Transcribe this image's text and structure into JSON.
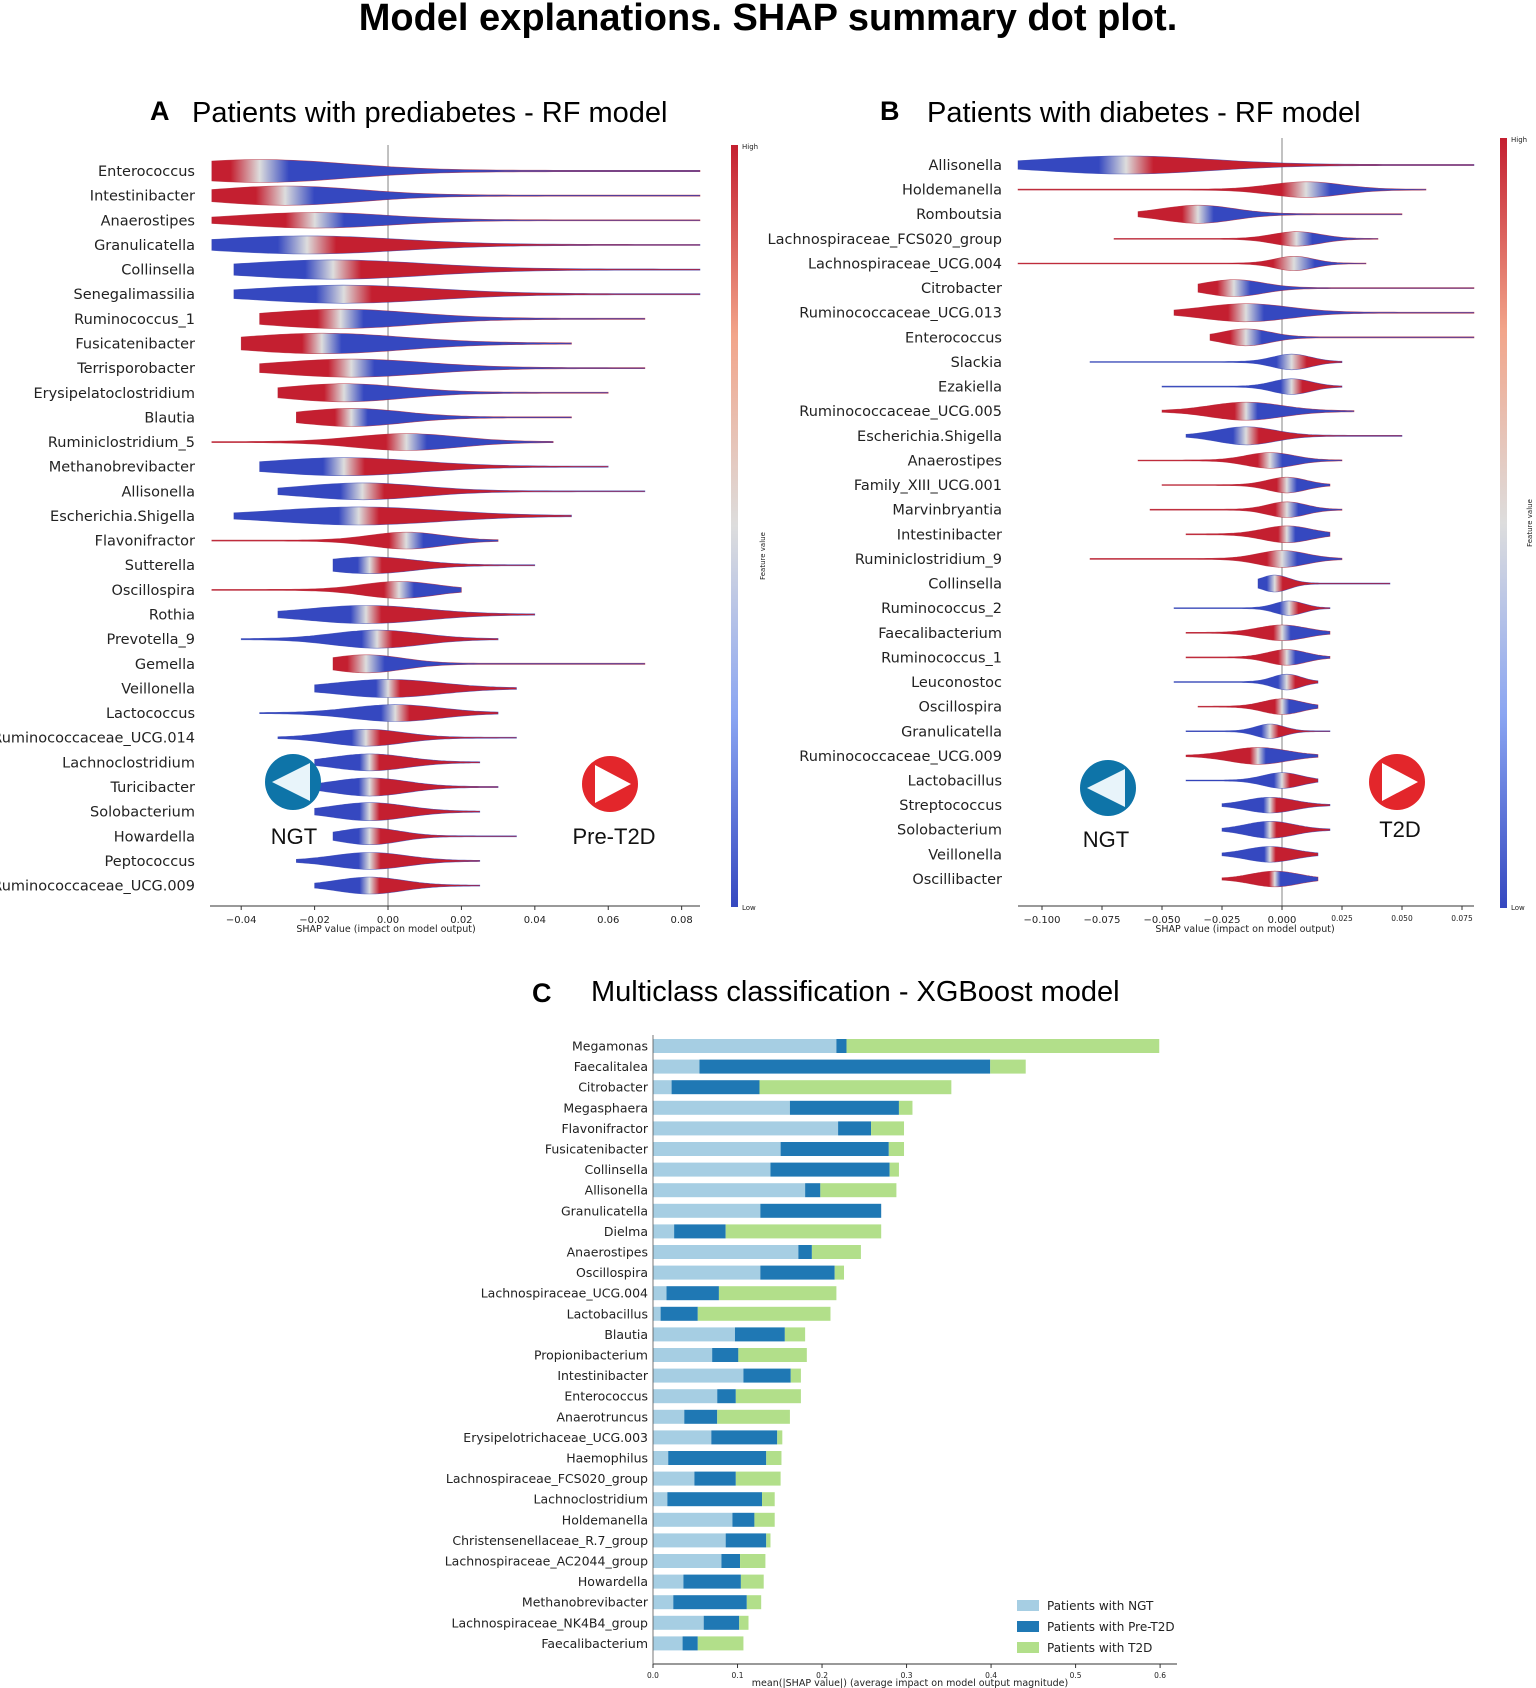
{
  "title": "Model explanations. SHAP summary dot plot.",
  "colors": {
    "high": "#c41f30",
    "low": "#3548c0",
    "mid": "#dddddd",
    "ngt": "#a6cee3",
    "pre_t2d": "#1f78b4",
    "t2d": "#b2df8a",
    "arrow_left": "#0e74a8",
    "arrow_right": "#e3262b"
  },
  "chart_data": [
    {
      "type": "violin",
      "panel": "A",
      "title": "Patients with prediabetes - RF model",
      "xlabel": "SHAP value (impact on model output)",
      "xlim": [
        -0.0485,
        0.085
      ],
      "xticks": [
        -0.04,
        -0.02,
        0.0,
        0.02,
        0.04,
        0.06,
        0.08
      ],
      "xtick_labels": [
        "−0.04",
        "−0.02",
        "0.00",
        "0.02",
        "0.04",
        "0.06",
        "0.08"
      ],
      "colorbar": {
        "label": "Feature value",
        "high": "High",
        "low": "Low"
      },
      "left_class": "NGT",
      "right_class": "Pre-T2D",
      "left_icon": "arrow-left-icon",
      "right_icon": "arrow-right-icon",
      "features": [
        "Enterococcus",
        "Intestinibacter",
        "Anaerostipes",
        "Granulicatella",
        "Collinsella",
        "Senegalimassilia",
        "Ruminococcus_1",
        "Fusicatenibacter",
        "Terrisporobacter",
        "Erysipelatoclostridium",
        "Blautia",
        "Ruminiclostridium_5",
        "Methanobrevibacter",
        "Allisonella",
        "Escherichia.Shigella",
        "Flavonifractor",
        "Sutterella",
        "Oscillospira",
        "Rothia",
        "Prevotella_9",
        "Gemella",
        "Veillonella",
        "Lactococcus",
        "Ruminococcaceae_UCG.014",
        "Lachnoclostridium",
        "Turicibacter",
        "Solobacterium",
        "Howardella",
        "Peptococcus",
        "Ruminococcaceae_UCG.009"
      ],
      "violins": [
        {
          "min": -0.048,
          "max": 0.085,
          "center": -0.035,
          "width": 0.024,
          "height": 0.95,
          "highside": -1
        },
        {
          "min": -0.048,
          "max": 0.085,
          "center": -0.028,
          "width": 0.02,
          "height": 0.8,
          "highside": -1
        },
        {
          "min": -0.048,
          "max": 0.085,
          "center": -0.02,
          "width": 0.02,
          "height": 0.65,
          "highside": -1
        },
        {
          "min": -0.048,
          "max": 0.085,
          "center": -0.022,
          "width": 0.025,
          "height": 0.75,
          "highside": 1
        },
        {
          "min": -0.042,
          "max": 0.085,
          "center": -0.015,
          "width": 0.025,
          "height": 0.8,
          "highside": 1
        },
        {
          "min": -0.042,
          "max": 0.085,
          "center": -0.012,
          "width": 0.024,
          "height": 0.75,
          "highside": 1
        },
        {
          "min": -0.035,
          "max": 0.07,
          "center": -0.013,
          "width": 0.02,
          "height": 0.8,
          "highside": -1
        },
        {
          "min": -0.04,
          "max": 0.05,
          "center": -0.018,
          "width": 0.022,
          "height": 0.85,
          "highside": -1
        },
        {
          "min": -0.035,
          "max": 0.07,
          "center": -0.01,
          "width": 0.02,
          "height": 0.75,
          "highside": -1
        },
        {
          "min": -0.03,
          "max": 0.06,
          "center": -0.012,
          "width": 0.016,
          "height": 0.75,
          "highside": -1
        },
        {
          "min": -0.025,
          "max": 0.05,
          "center": -0.01,
          "width": 0.014,
          "height": 0.75,
          "highside": -1
        },
        {
          "min": -0.048,
          "max": 0.045,
          "center": 0.005,
          "width": 0.014,
          "height": 0.7,
          "highside": -1
        },
        {
          "min": -0.035,
          "max": 0.06,
          "center": -0.012,
          "width": 0.02,
          "height": 0.75,
          "highside": 1
        },
        {
          "min": -0.03,
          "max": 0.07,
          "center": -0.007,
          "width": 0.016,
          "height": 0.7,
          "highside": 1
        },
        {
          "min": -0.042,
          "max": 0.05,
          "center": -0.008,
          "width": 0.022,
          "height": 0.75,
          "highside": 1
        },
        {
          "min": -0.048,
          "max": 0.03,
          "center": 0.005,
          "width": 0.01,
          "height": 0.7,
          "highside": -1
        },
        {
          "min": -0.015,
          "max": 0.04,
          "center": -0.005,
          "width": 0.012,
          "height": 0.7,
          "highside": 1
        },
        {
          "min": -0.048,
          "max": 0.02,
          "center": 0.003,
          "width": 0.01,
          "height": 0.7,
          "highside": -1
        },
        {
          "min": -0.03,
          "max": 0.04,
          "center": -0.006,
          "width": 0.016,
          "height": 0.75,
          "highside": 1
        },
        {
          "min": -0.04,
          "max": 0.03,
          "center": -0.003,
          "width": 0.012,
          "height": 0.75,
          "highside": 1
        },
        {
          "min": -0.015,
          "max": 0.07,
          "center": -0.006,
          "width": 0.01,
          "height": 0.75,
          "highside": -1
        },
        {
          "min": -0.02,
          "max": 0.035,
          "center": 0.0,
          "width": 0.014,
          "height": 0.75,
          "highside": 1
        },
        {
          "min": -0.035,
          "max": 0.03,
          "center": 0.002,
          "width": 0.012,
          "height": 0.7,
          "highside": 1
        },
        {
          "min": -0.03,
          "max": 0.035,
          "center": -0.006,
          "width": 0.01,
          "height": 0.7,
          "highside": 1
        },
        {
          "min": -0.02,
          "max": 0.025,
          "center": -0.005,
          "width": 0.01,
          "height": 0.7,
          "highside": 1
        },
        {
          "min": -0.02,
          "max": 0.03,
          "center": -0.005,
          "width": 0.01,
          "height": 0.75,
          "highside": 1
        },
        {
          "min": -0.02,
          "max": 0.025,
          "center": -0.005,
          "width": 0.01,
          "height": 0.75,
          "highside": 1
        },
        {
          "min": -0.015,
          "max": 0.035,
          "center": -0.005,
          "width": 0.008,
          "height": 0.7,
          "highside": 1
        },
        {
          "min": -0.025,
          "max": 0.025,
          "center": -0.005,
          "width": 0.01,
          "height": 0.7,
          "highside": 1
        },
        {
          "min": -0.02,
          "max": 0.025,
          "center": -0.005,
          "width": 0.009,
          "height": 0.7,
          "highside": 1
        }
      ]
    },
    {
      "type": "violin",
      "panel": "B",
      "title": "Patients with diabetes - RF model",
      "xlabel": "SHAP value (impact on model output)",
      "xlim": [
        -0.11,
        0.08
      ],
      "xticks": [
        -0.1,
        -0.075,
        -0.05,
        -0.025,
        0.0,
        0.025,
        0.05,
        0.075
      ],
      "xtick_labels": [
        "−0.100",
        "−0.075",
        "−0.050",
        "−0.025",
        "0.000",
        "0.025",
        "0.050",
        "0.075"
      ],
      "colorbar": {
        "label": "Feature value",
        "high": "High",
        "low": "Low"
      },
      "left_class": "NGT",
      "right_class": "T2D",
      "left_icon": "arrow-left-icon",
      "right_icon": "arrow-right-icon",
      "features": [
        "Allisonella",
        "Holdemanella",
        "Romboutsia",
        "Lachnospiraceae_FCS020_group",
        "Lachnospiraceae_UCG.004",
        "Citrobacter",
        "Ruminococcaceae_UCG.013",
        "Enterococcus",
        "Slackia",
        "Ezakiella",
        "Ruminococcaceae_UCG.005",
        "Escherichia.Shigella",
        "Anaerostipes",
        "Family_XIII_UCG.001",
        "Marvinbryantia",
        "Intestinibacter",
        "Ruminiclostridium_9",
        "Collinsella",
        "Ruminococcus_2",
        "Faecalibacterium",
        "Ruminococcus_1",
        "Leuconostoc",
        "Oscillospira",
        "Granulicatella",
        "Ruminococcaceae_UCG.009",
        "Lactobacillus",
        "Streptococcus",
        "Solobacterium",
        "Veillonella",
        "Oscillibacter"
      ],
      "violins": [
        {
          "min": -0.11,
          "max": 0.08,
          "center": -0.065,
          "width": 0.035,
          "height": 0.75,
          "highside": 1
        },
        {
          "min": -0.11,
          "max": 0.06,
          "center": 0.01,
          "width": 0.015,
          "height": 0.65,
          "highside": -1
        },
        {
          "min": -0.06,
          "max": 0.05,
          "center": -0.035,
          "width": 0.015,
          "height": 0.75,
          "highside": -1
        },
        {
          "min": -0.07,
          "max": 0.04,
          "center": 0.006,
          "width": 0.01,
          "height": 0.6,
          "highside": -1
        },
        {
          "min": -0.11,
          "max": 0.035,
          "center": 0.005,
          "width": 0.008,
          "height": 0.6,
          "highside": -1
        },
        {
          "min": -0.035,
          "max": 0.08,
          "center": -0.02,
          "width": 0.012,
          "height": 0.7,
          "highside": -1
        },
        {
          "min": -0.045,
          "max": 0.08,
          "center": -0.015,
          "width": 0.018,
          "height": 0.75,
          "highside": -1
        },
        {
          "min": -0.03,
          "max": 0.08,
          "center": -0.015,
          "width": 0.01,
          "height": 0.7,
          "highside": -1
        },
        {
          "min": -0.08,
          "max": 0.025,
          "center": 0.004,
          "width": 0.008,
          "height": 0.65,
          "highside": 1
        },
        {
          "min": -0.05,
          "max": 0.025,
          "center": 0.004,
          "width": 0.008,
          "height": 0.65,
          "highside": 1
        },
        {
          "min": -0.05,
          "max": 0.03,
          "center": -0.015,
          "width": 0.015,
          "height": 0.75,
          "highside": -1
        },
        {
          "min": -0.04,
          "max": 0.05,
          "center": -0.015,
          "width": 0.012,
          "height": 0.75,
          "highside": 1
        },
        {
          "min": -0.06,
          "max": 0.025,
          "center": -0.005,
          "width": 0.01,
          "height": 0.65,
          "highside": -1
        },
        {
          "min": -0.05,
          "max": 0.02,
          "center": 0.002,
          "width": 0.008,
          "height": 0.65,
          "highside": -1
        },
        {
          "min": -0.055,
          "max": 0.025,
          "center": 0.002,
          "width": 0.008,
          "height": 0.65,
          "highside": -1
        },
        {
          "min": -0.04,
          "max": 0.02,
          "center": 0.002,
          "width": 0.01,
          "height": 0.7,
          "highside": -1
        },
        {
          "min": -0.08,
          "max": 0.025,
          "center": 0.0,
          "width": 0.01,
          "height": 0.7,
          "highside": -1
        },
        {
          "min": -0.01,
          "max": 0.045,
          "center": -0.003,
          "width": 0.006,
          "height": 0.7,
          "highside": 1
        },
        {
          "min": -0.045,
          "max": 0.02,
          "center": 0.003,
          "width": 0.006,
          "height": 0.6,
          "highside": 1
        },
        {
          "min": -0.04,
          "max": 0.02,
          "center": 0.0,
          "width": 0.01,
          "height": 0.65,
          "highside": -1
        },
        {
          "min": -0.04,
          "max": 0.02,
          "center": 0.002,
          "width": 0.008,
          "height": 0.65,
          "highside": -1
        },
        {
          "min": -0.045,
          "max": 0.015,
          "center": 0.002,
          "width": 0.006,
          "height": 0.65,
          "highside": 1
        },
        {
          "min": -0.035,
          "max": 0.015,
          "center": 0.0,
          "width": 0.008,
          "height": 0.65,
          "highside": -1
        },
        {
          "min": -0.04,
          "max": 0.02,
          "center": -0.005,
          "width": 0.006,
          "height": 0.6,
          "highside": 1
        },
        {
          "min": -0.04,
          "max": 0.015,
          "center": -0.01,
          "width": 0.012,
          "height": 0.7,
          "highside": -1
        },
        {
          "min": -0.04,
          "max": 0.015,
          "center": 0.0,
          "width": 0.008,
          "height": 0.65,
          "highside": 1
        },
        {
          "min": -0.025,
          "max": 0.02,
          "center": -0.005,
          "width": 0.01,
          "height": 0.65,
          "highside": 1
        },
        {
          "min": -0.025,
          "max": 0.02,
          "center": -0.005,
          "width": 0.01,
          "height": 0.7,
          "highside": 1
        },
        {
          "min": -0.025,
          "max": 0.015,
          "center": -0.005,
          "width": 0.01,
          "height": 0.65,
          "highside": 1
        },
        {
          "min": -0.025,
          "max": 0.015,
          "center": -0.003,
          "width": 0.01,
          "height": 0.65,
          "highside": -1
        }
      ]
    },
    {
      "type": "bar",
      "panel": "C",
      "stacked": true,
      "orientation": "horizontal",
      "title": "Multiclass classification - XGBoost model",
      "xlabel": "mean(|SHAP value|) (average impact on model output magnitude)",
      "xlim": [
        0,
        0.62
      ],
      "xticks": [
        0.0,
        0.1,
        0.2,
        0.3,
        0.4,
        0.5,
        0.6
      ],
      "xtick_labels": [
        "0.0",
        "0.1",
        "0.2",
        "0.3",
        "0.4",
        "0.5",
        "0.6"
      ],
      "legend": [
        "Patients with NGT",
        "Patients with Pre-T2D",
        "Patients with T2D"
      ],
      "categories": [
        "Megamonas",
        "Faecalitalea",
        "Citrobacter",
        "Megasphaera",
        "Flavonifractor",
        "Fusicatenibacter",
        "Collinsella",
        "Allisonella",
        "Granulicatella",
        "Dielma",
        "Anaerostipes",
        "Oscillospira",
        "Lachnospiraceae_UCG.004",
        "Lactobacillus",
        "Blautia",
        "Propionibacterium",
        "Intestinibacter",
        "Enterococcus",
        "Anaerotruncus",
        "Erysipelotrichaceae_UCG.003",
        "Haemophilus",
        "Lachnospiraceae_FCS020_group",
        "Lachnoclostridium",
        "Holdemanella",
        "Christensenellaceae_R.7_group",
        "Lachnospiraceae_AC2044_group",
        "Howardella",
        "Methanobrevibacter",
        "Lachnospiraceae_NK4B4_group",
        "Faecalibacterium"
      ],
      "series": [
        {
          "name": "Patients with NGT",
          "values": [
            0.217,
            0.055,
            0.022,
            0.162,
            0.219,
            0.151,
            0.139,
            0.18,
            0.127,
            0.025,
            0.172,
            0.127,
            0.016,
            0.009,
            0.097,
            0.07,
            0.107,
            0.076,
            0.037,
            0.069,
            0.018,
            0.049,
            0.017,
            0.094,
            0.086,
            0.081,
            0.036,
            0.024,
            0.06,
            0.035
          ]
        },
        {
          "name": "Patients with Pre-T2D",
          "values": [
            0.012,
            0.344,
            0.104,
            0.129,
            0.039,
            0.128,
            0.141,
            0.018,
            0.143,
            0.061,
            0.016,
            0.088,
            0.062,
            0.044,
            0.059,
            0.031,
            0.056,
            0.022,
            0.039,
            0.078,
            0.116,
            0.049,
            0.112,
            0.026,
            0.048,
            0.022,
            0.068,
            0.087,
            0.042,
            0.018
          ]
        },
        {
          "name": "Patients with T2D",
          "values": [
            0.37,
            0.042,
            0.227,
            0.016,
            0.039,
            0.018,
            0.011,
            0.09,
            0.0,
            0.184,
            0.058,
            0.011,
            0.139,
            0.157,
            0.024,
            0.081,
            0.012,
            0.077,
            0.086,
            0.006,
            0.018,
            0.053,
            0.015,
            0.024,
            0.005,
            0.03,
            0.027,
            0.017,
            0.011,
            0.054
          ]
        }
      ]
    }
  ]
}
